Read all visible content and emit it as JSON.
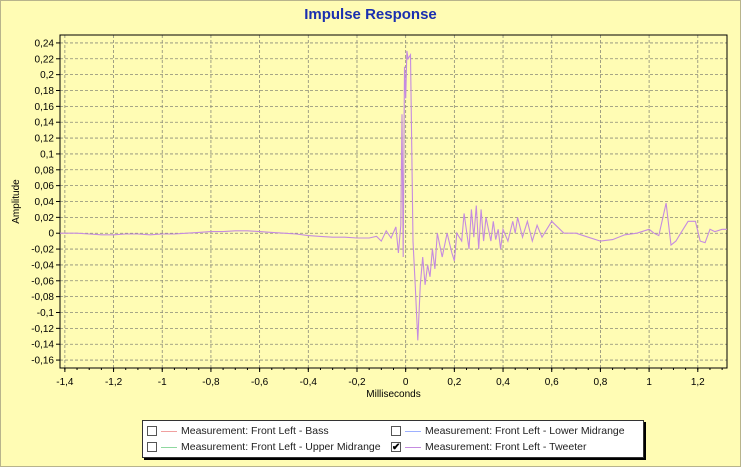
{
  "chart_data": {
    "type": "line",
    "title": "Impulse Response",
    "xlabel": "Milliseconds",
    "ylabel": "Amplitude",
    "xlim": [
      -1.42,
      1.32
    ],
    "ylim": [
      -0.17,
      0.25
    ],
    "x_ticks": [
      "-1,4",
      "-1,2",
      "-1",
      "-0,8",
      "-0,6",
      "-0,4",
      "-0,2",
      "0",
      "0,2",
      "0,4",
      "0,6",
      "0,8",
      "1",
      "1,2"
    ],
    "x_tick_values": [
      -1.4,
      -1.2,
      -1.0,
      -0.8,
      -0.6,
      -0.4,
      -0.2,
      0.0,
      0.2,
      0.4,
      0.6,
      0.8,
      1.0,
      1.2
    ],
    "y_ticks": [
      "0,24",
      "0,22",
      "0,2",
      "0,18",
      "0,16",
      "0,14",
      "0,12",
      "0,1",
      "0,08",
      "0,06",
      "0,04",
      "0,02",
      "0",
      "-0,02",
      "-0,04",
      "-0,06",
      "-0,08",
      "-0,1",
      "-0,12",
      "-0,14",
      "-0,16"
    ],
    "y_tick_values": [
      0.24,
      0.22,
      0.2,
      0.18,
      0.16,
      0.14,
      0.12,
      0.1,
      0.08,
      0.06,
      0.04,
      0.02,
      0,
      -0.02,
      -0.04,
      -0.06,
      -0.08,
      -0.1,
      -0.12,
      -0.14,
      -0.16
    ],
    "grid": true,
    "legend_position": "bottom-center",
    "series": [
      {
        "name": "Measurement: Front Left - Tweeter",
        "color": "#c58be0",
        "x": [
          -1.42,
          -1.35,
          -1.3,
          -1.25,
          -1.2,
          -1.15,
          -1.1,
          -1.05,
          -1.0,
          -0.95,
          -0.9,
          -0.85,
          -0.8,
          -0.75,
          -0.7,
          -0.65,
          -0.6,
          -0.55,
          -0.5,
          -0.45,
          -0.4,
          -0.35,
          -0.3,
          -0.25,
          -0.2,
          -0.15,
          -0.12,
          -0.1,
          -0.08,
          -0.06,
          -0.04,
          -0.03,
          -0.02,
          -0.015,
          -0.01,
          -0.005,
          0.0,
          0.005,
          0.01,
          0.02,
          0.03,
          0.04,
          0.05,
          0.06,
          0.07,
          0.08,
          0.09,
          0.1,
          0.11,
          0.12,
          0.13,
          0.15,
          0.17,
          0.19,
          0.2,
          0.21,
          0.23,
          0.24,
          0.26,
          0.27,
          0.28,
          0.29,
          0.3,
          0.31,
          0.32,
          0.33,
          0.35,
          0.36,
          0.37,
          0.38,
          0.39,
          0.4,
          0.42,
          0.44,
          0.45,
          0.46,
          0.48,
          0.5,
          0.52,
          0.54,
          0.56,
          0.6,
          0.65,
          0.7,
          0.75,
          0.8,
          0.85,
          0.9,
          0.95,
          1.0,
          1.02,
          1.04,
          1.07,
          1.09,
          1.11,
          1.13,
          1.16,
          1.19,
          1.21,
          1.23,
          1.25,
          1.27,
          1.3,
          1.32
        ],
        "y": [
          0.0,
          0.0,
          -0.001,
          -0.002,
          -0.002,
          -0.001,
          -0.001,
          -0.002,
          -0.001,
          -0.001,
          0.0,
          0.001,
          0.002,
          0.002,
          0.003,
          0.003,
          0.002,
          0.001,
          0.0,
          -0.001,
          -0.003,
          -0.004,
          -0.005,
          -0.005,
          -0.006,
          -0.006,
          -0.004,
          -0.01,
          0.003,
          -0.006,
          0.008,
          -0.025,
          0.01,
          0.15,
          -0.03,
          0.21,
          0.17,
          0.23,
          0.22,
          0.225,
          -0.01,
          -0.07,
          -0.135,
          -0.065,
          -0.03,
          -0.065,
          -0.04,
          -0.055,
          -0.02,
          -0.045,
          0.0,
          -0.03,
          0.0,
          -0.025,
          -0.035,
          0.0,
          -0.01,
          0.025,
          -0.02,
          0.03,
          -0.005,
          0.035,
          -0.02,
          0.03,
          -0.01,
          0.02,
          -0.01,
          0.015,
          -0.008,
          0.005,
          -0.02,
          0.005,
          -0.01,
          0.015,
          0.0,
          0.02,
          -0.005,
          0.015,
          -0.01,
          0.01,
          -0.005,
          0.015,
          0.0,
          0.0,
          -0.005,
          -0.01,
          -0.008,
          -0.002,
          0.0,
          0.005,
          0.0,
          -0.003,
          0.038,
          -0.015,
          -0.01,
          0.0,
          0.015,
          0.015,
          -0.01,
          -0.012,
          0.005,
          0.002,
          0.005,
          0.005
        ]
      }
    ]
  },
  "legend": {
    "items": [
      {
        "label": "Measurement: Front Left - Bass",
        "checked": false,
        "color": "#f0a0a0"
      },
      {
        "label": "Measurement: Front Left - Lower Midrange",
        "checked": false,
        "color": "#9db0ff"
      },
      {
        "label": "Measurement: Front Left - Upper Midrange",
        "checked": false,
        "color": "#8fd8a0"
      },
      {
        "label": "Measurement: Front Left - Tweeter",
        "checked": true,
        "color": "#c58be0"
      }
    ]
  },
  "colors": {
    "background": "#fffcb4",
    "plot_background": "#fffcb4",
    "grid": "#8a8a78",
    "title": "#1a2fb0"
  }
}
